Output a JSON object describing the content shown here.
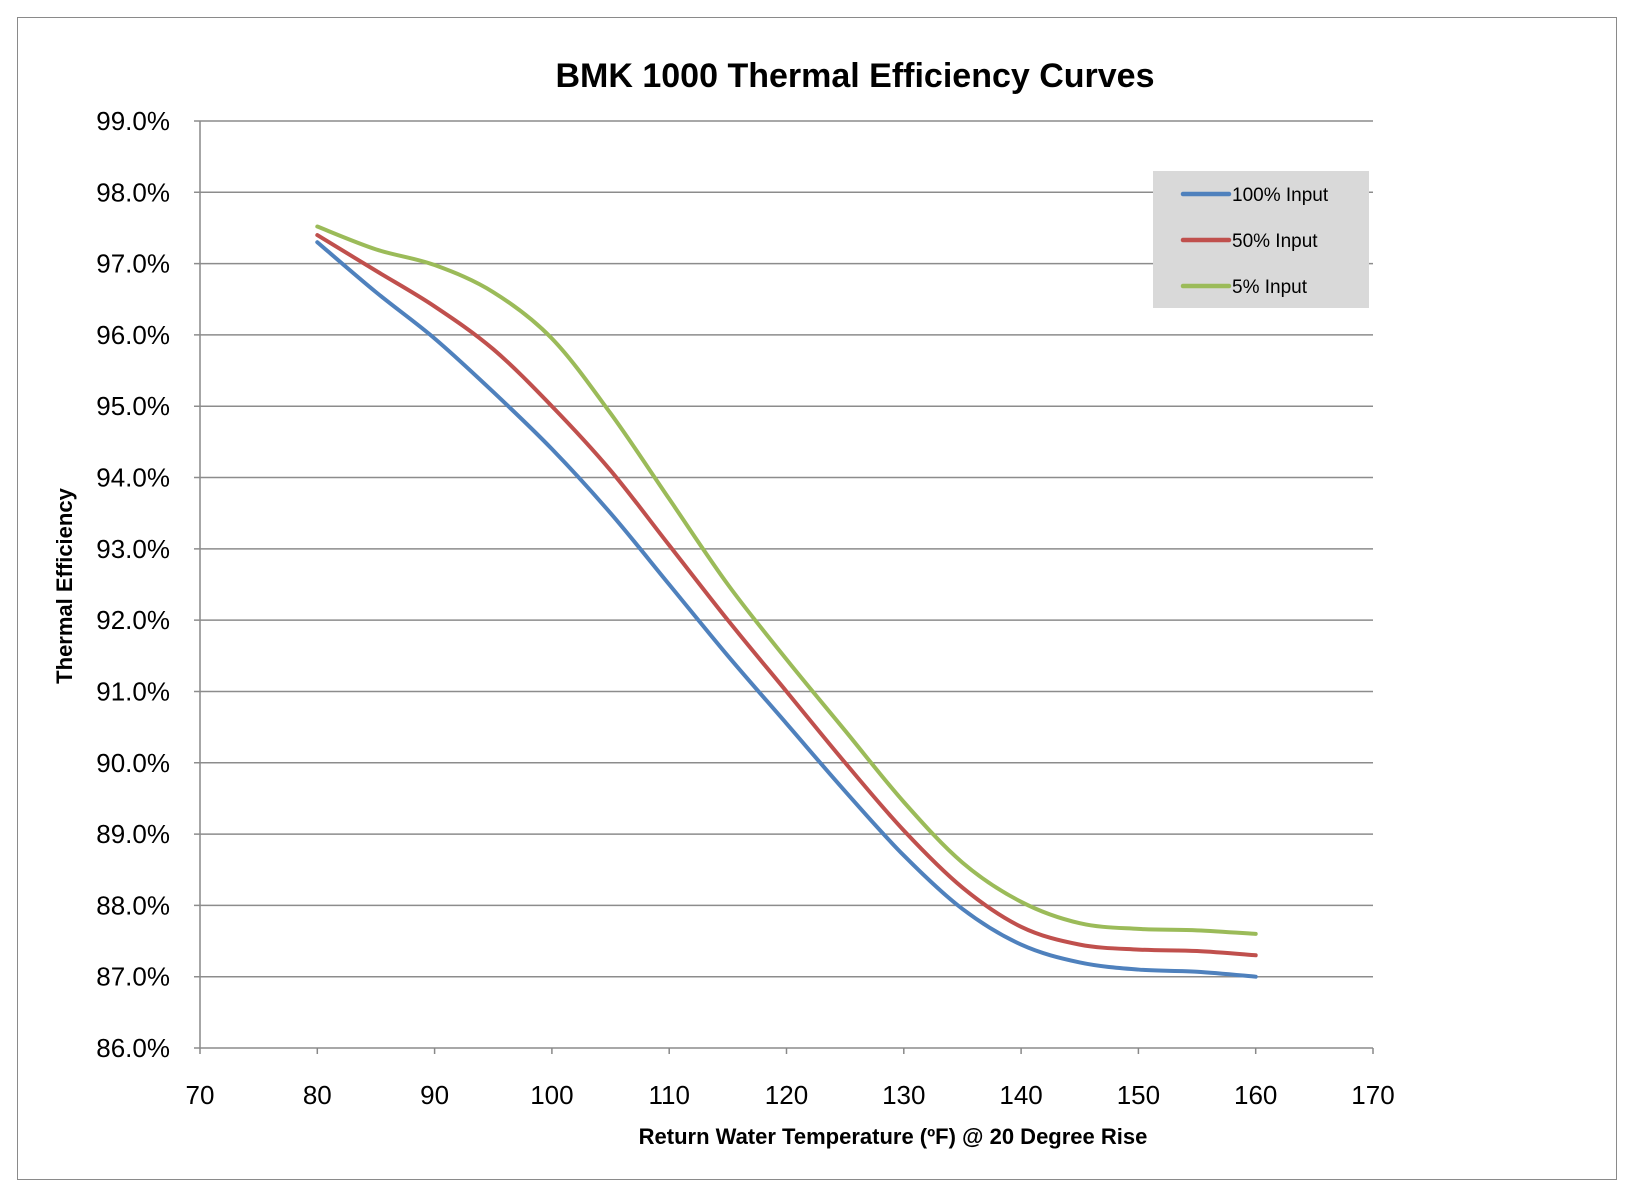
{
  "chart_data": {
    "type": "line",
    "title": "BMK 1000 Thermal Efficiency Curves",
    "xlabel": "Return Water Temperature (ºF) @ 20 Degree Rise",
    "ylabel": "Thermal Efficiency",
    "xlim": [
      70,
      170
    ],
    "ylim": [
      86,
      99
    ],
    "x_ticks": [
      "70",
      "80",
      "90",
      "100",
      "110",
      "120",
      "130",
      "140",
      "150",
      "160",
      "170"
    ],
    "y_ticks": [
      "86.0%",
      "87.0%",
      "88.0%",
      "89.0%",
      "90.0%",
      "91.0%",
      "92.0%",
      "93.0%",
      "94.0%",
      "95.0%",
      "96.0%",
      "97.0%",
      "98.0%",
      "99.0%"
    ],
    "grid": "horizontal",
    "legend": "top-right",
    "x": [
      80,
      85,
      90,
      95,
      100,
      105,
      110,
      115,
      120,
      125,
      130,
      135,
      140,
      145,
      150,
      155,
      160
    ],
    "series": [
      {
        "name": "100% Input",
        "color": "#4f81bd",
        "values": [
          97.3,
          96.6,
          95.95,
          95.2,
          94.4,
          93.5,
          92.5,
          91.5,
          90.55,
          89.6,
          88.7,
          87.95,
          87.45,
          87.2,
          87.1,
          87.07,
          87.0
        ]
      },
      {
        "name": "50% Input",
        "color": "#c0504d",
        "values": [
          97.4,
          96.9,
          96.4,
          95.8,
          95.0,
          94.1,
          93.05,
          92.0,
          91.0,
          90.0,
          89.05,
          88.25,
          87.7,
          87.45,
          87.38,
          87.36,
          87.3
        ]
      },
      {
        "name": "5% Input",
        "color": "#9bbb59",
        "values": [
          97.52,
          97.2,
          96.98,
          96.6,
          95.95,
          94.9,
          93.7,
          92.5,
          91.45,
          90.45,
          89.45,
          88.6,
          88.05,
          87.75,
          87.67,
          87.65,
          87.6
        ]
      }
    ]
  }
}
